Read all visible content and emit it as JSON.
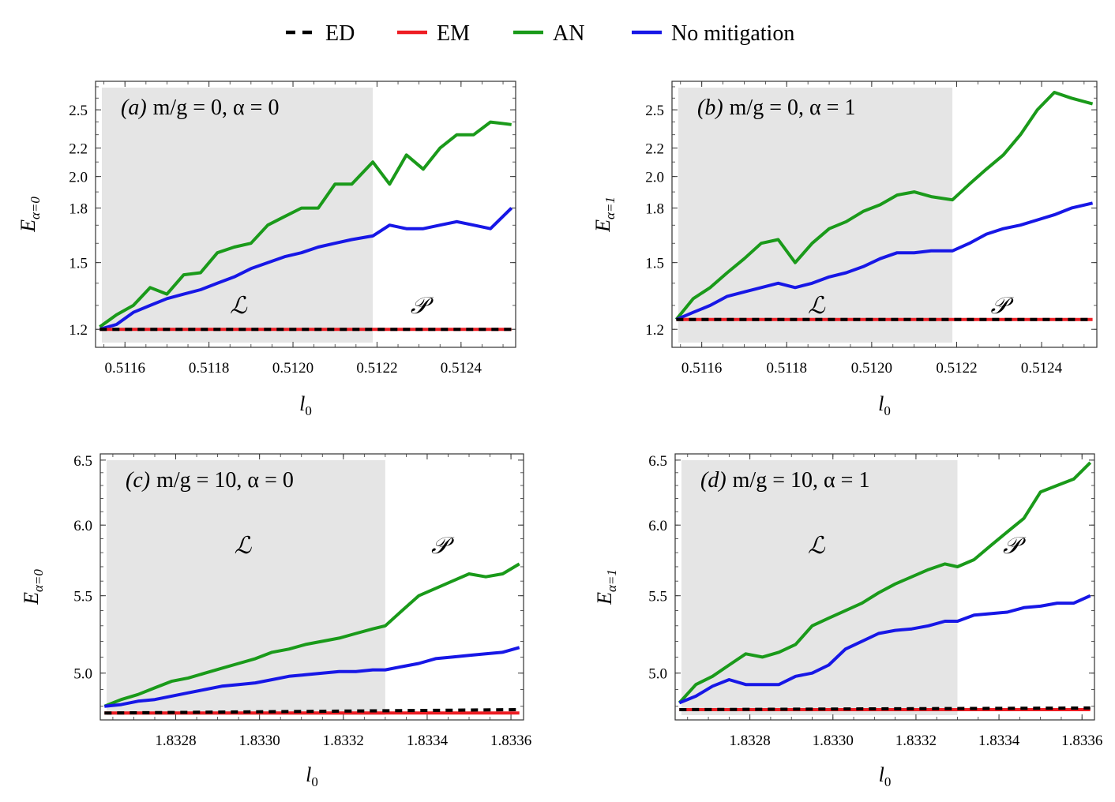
{
  "legend": [
    {
      "name": "ED",
      "color": "#000000",
      "dash": true
    },
    {
      "name": "EM",
      "color": "#ee1d23",
      "dash": false
    },
    {
      "name": "AN",
      "color": "#1a9a1a",
      "dash": false
    },
    {
      "name": "No mitigation",
      "color": "#1717e6",
      "dash": false
    }
  ],
  "chart_data": [
    {
      "type": "line",
      "panel_label": "(a)",
      "title": "m/g = 0,  α = 0",
      "xlabel": "l0",
      "ylabel": "E α=0",
      "ylabel_main": "E",
      "ylabel_sub": "α=0",
      "y_scale": "log",
      "xlim": [
        0.51153,
        0.51253
      ],
      "ylim": [
        1.13,
        2.75
      ],
      "xticks": [
        0.5116,
        0.5118,
        0.512,
        0.5122,
        0.5124
      ],
      "xtick_labels": [
        "0.5116",
        "0.5118",
        "0.5120",
        "0.5122",
        "0.5124"
      ],
      "yticks": [
        1.2,
        1.5,
        1.8,
        2.0,
        2.2,
        2.5
      ],
      "ytick_labels": [
        "1.2",
        "1.5",
        "1.8",
        "2.0",
        "2.2",
        "2.5"
      ],
      "shaded_region": [
        0.51153,
        0.51219
      ],
      "region_labels": [
        {
          "text": "ℒ",
          "x": 0.51187,
          "y": 1.3
        },
        {
          "text": "𝒫",
          "x": 0.5123,
          "y": 1.3
        }
      ],
      "series": [
        {
          "name": "ED",
          "x": [
            0.51154,
            0.51252
          ],
          "y": [
            1.2,
            1.2
          ]
        },
        {
          "name": "EM",
          "x": [
            0.51154,
            0.51252
          ],
          "y": [
            1.2,
            1.2
          ]
        },
        {
          "name": "AN",
          "x": [
            0.51154,
            0.51158,
            0.51162,
            0.51166,
            0.5117,
            0.51174,
            0.51178,
            0.51182,
            0.51186,
            0.5119,
            0.51194,
            0.51198,
            0.51202,
            0.51206,
            0.5121,
            0.51214,
            0.51219,
            0.51223,
            0.51227,
            0.51231,
            0.51235,
            0.51239,
            0.51243,
            0.51247,
            0.51252
          ],
          "y": [
            1.21,
            1.26,
            1.3,
            1.38,
            1.35,
            1.44,
            1.45,
            1.55,
            1.58,
            1.6,
            1.7,
            1.75,
            1.8,
            1.8,
            1.95,
            1.95,
            2.1,
            1.95,
            2.15,
            2.05,
            2.2,
            2.3,
            2.3,
            2.4,
            2.38
          ]
        },
        {
          "name": "No mitigation",
          "x": [
            0.51154,
            0.51158,
            0.51162,
            0.51166,
            0.5117,
            0.51174,
            0.51178,
            0.51182,
            0.51186,
            0.5119,
            0.51194,
            0.51198,
            0.51202,
            0.51206,
            0.5121,
            0.51214,
            0.51219,
            0.51223,
            0.51227,
            0.51231,
            0.51235,
            0.51239,
            0.51243,
            0.51247,
            0.51252
          ],
          "y": [
            1.2,
            1.22,
            1.27,
            1.3,
            1.33,
            1.35,
            1.37,
            1.4,
            1.43,
            1.47,
            1.5,
            1.53,
            1.55,
            1.58,
            1.6,
            1.62,
            1.64,
            1.7,
            1.68,
            1.68,
            1.7,
            1.72,
            1.7,
            1.68,
            1.8
          ]
        }
      ]
    },
    {
      "type": "line",
      "panel_label": "(b)",
      "title": "m/g = 0,  α = 1",
      "xlabel": "l0",
      "ylabel": "E α=1",
      "ylabel_main": "E",
      "ylabel_sub": "α=1",
      "y_scale": "log",
      "xlim": [
        0.51153,
        0.51253
      ],
      "ylim": [
        1.13,
        2.75
      ],
      "xticks": [
        0.5116,
        0.5118,
        0.512,
        0.5122,
        0.5124
      ],
      "xtick_labels": [
        "0.5116",
        "0.5118",
        "0.5120",
        "0.5122",
        "0.5124"
      ],
      "yticks": [
        1.2,
        1.5,
        1.8,
        2.0,
        2.2,
        2.5
      ],
      "ytick_labels": [
        "1.2",
        "1.5",
        "1.8",
        "2.0",
        "2.2",
        "2.5"
      ],
      "shaded_region": [
        0.51153,
        0.51219
      ],
      "region_labels": [
        {
          "text": "ℒ",
          "x": 0.51187,
          "y": 1.3
        },
        {
          "text": "𝒫",
          "x": 0.5123,
          "y": 1.3
        }
      ],
      "series": [
        {
          "name": "ED",
          "x": [
            0.51154,
            0.51252
          ],
          "y": [
            1.24,
            1.24
          ]
        },
        {
          "name": "EM",
          "x": [
            0.51154,
            0.51252
          ],
          "y": [
            1.24,
            1.24
          ]
        },
        {
          "name": "AN",
          "x": [
            0.51154,
            0.51158,
            0.51162,
            0.51166,
            0.5117,
            0.51174,
            0.51178,
            0.51182,
            0.51186,
            0.5119,
            0.51194,
            0.51198,
            0.51202,
            0.51206,
            0.5121,
            0.51214,
            0.51219,
            0.51223,
            0.51227,
            0.51231,
            0.51235,
            0.51239,
            0.51243,
            0.51247,
            0.51252
          ],
          "y": [
            1.24,
            1.33,
            1.38,
            1.45,
            1.52,
            1.6,
            1.62,
            1.5,
            1.6,
            1.68,
            1.72,
            1.78,
            1.82,
            1.88,
            1.9,
            1.87,
            1.85,
            1.95,
            2.05,
            2.15,
            2.3,
            2.5,
            2.65,
            2.6,
            2.55
          ]
        },
        {
          "name": "No mitigation",
          "x": [
            0.51154,
            0.51158,
            0.51162,
            0.51166,
            0.5117,
            0.51174,
            0.51178,
            0.51182,
            0.51186,
            0.5119,
            0.51194,
            0.51198,
            0.51202,
            0.51206,
            0.5121,
            0.51214,
            0.51219,
            0.51223,
            0.51227,
            0.51231,
            0.51235,
            0.51239,
            0.51243,
            0.51247,
            0.51252
          ],
          "y": [
            1.24,
            1.27,
            1.3,
            1.34,
            1.36,
            1.38,
            1.4,
            1.38,
            1.4,
            1.43,
            1.45,
            1.48,
            1.52,
            1.55,
            1.55,
            1.56,
            1.56,
            1.6,
            1.65,
            1.68,
            1.7,
            1.73,
            1.76,
            1.8,
            1.83
          ]
        }
      ]
    },
    {
      "type": "line",
      "panel_label": "(c)",
      "title": "m/g = 10,  α = 0",
      "xlabel": "l0",
      "ylabel": "E α=0",
      "ylabel_main": "E",
      "ylabel_sub": "α=0",
      "y_scale": "log",
      "xlim": [
        1.83262,
        1.83363
      ],
      "ylim": [
        4.72,
        6.55
      ],
      "xticks": [
        1.8328,
        1.833,
        1.8332,
        1.8334,
        1.8336
      ],
      "xtick_labels": [
        "1.8328",
        "1.8330",
        "1.8332",
        "1.8334",
        "1.8336"
      ],
      "yticks": [
        5.0,
        5.5,
        6.0,
        6.5
      ],
      "ytick_labels": [
        "5.0",
        "5.5",
        "6.0",
        "6.5"
      ],
      "shaded_region": [
        1.83262,
        1.8333
      ],
      "region_labels": [
        {
          "text": "ℒ",
          "x": 1.83296,
          "y": 5.85
        },
        {
          "text": "𝒫",
          "x": 1.83343,
          "y": 5.85
        }
      ],
      "series": [
        {
          "name": "ED",
          "x": [
            1.83263,
            1.83362
          ],
          "y": [
            4.76,
            4.78
          ]
        },
        {
          "name": "EM",
          "x": [
            1.83263,
            1.83362
          ],
          "y": [
            4.76,
            4.76
          ]
        },
        {
          "name": "AN",
          "x": [
            1.83263,
            1.83267,
            1.83271,
            1.83275,
            1.83279,
            1.83283,
            1.83287,
            1.83291,
            1.83295,
            1.83299,
            1.83303,
            1.83307,
            1.83311,
            1.83315,
            1.83319,
            1.83323,
            1.83327,
            1.8333,
            1.83334,
            1.83338,
            1.83342,
            1.83346,
            1.8335,
            1.83354,
            1.83358,
            1.83362
          ],
          "y": [
            4.8,
            4.84,
            4.87,
            4.91,
            4.95,
            4.97,
            5.0,
            5.03,
            5.06,
            5.09,
            5.13,
            5.15,
            5.18,
            5.2,
            5.22,
            5.25,
            5.28,
            5.3,
            5.4,
            5.5,
            5.55,
            5.6,
            5.65,
            5.63,
            5.65,
            5.72
          ]
        },
        {
          "name": "No mitigation",
          "x": [
            1.83263,
            1.83267,
            1.83271,
            1.83275,
            1.83279,
            1.83283,
            1.83287,
            1.83291,
            1.83295,
            1.83299,
            1.83303,
            1.83307,
            1.83311,
            1.83315,
            1.83319,
            1.83323,
            1.83327,
            1.8333,
            1.83334,
            1.83338,
            1.83342,
            1.83346,
            1.8335,
            1.83354,
            1.83358,
            1.83362
          ],
          "y": [
            4.8,
            4.81,
            4.83,
            4.84,
            4.86,
            4.88,
            4.9,
            4.92,
            4.93,
            4.94,
            4.96,
            4.98,
            4.99,
            5.0,
            5.01,
            5.01,
            5.02,
            5.02,
            5.04,
            5.06,
            5.09,
            5.1,
            5.11,
            5.12,
            5.13,
            5.16
          ]
        }
      ]
    },
    {
      "type": "line",
      "panel_label": "(d)",
      "title": "m/g = 10,  α = 1",
      "xlabel": "l0",
      "ylabel": "E α=1",
      "ylabel_main": "E",
      "ylabel_sub": "α=1",
      "y_scale": "log",
      "xlim": [
        1.83262,
        1.83363
      ],
      "ylim": [
        4.72,
        6.55
      ],
      "xticks": [
        1.8328,
        1.833,
        1.8332,
        1.8334,
        1.8336
      ],
      "xtick_labels": [
        "1.8328",
        "1.8330",
        "1.8332",
        "1.8334",
        "1.8336"
      ],
      "yticks": [
        5.0,
        5.5,
        6.0,
        6.5
      ],
      "ytick_labels": [
        "5.0",
        "5.5",
        "6.0",
        "6.5"
      ],
      "shaded_region": [
        1.83262,
        1.8333
      ],
      "region_labels": [
        {
          "text": "ℒ",
          "x": 1.83296,
          "y": 5.85
        },
        {
          "text": "𝒫",
          "x": 1.83343,
          "y": 5.85
        }
      ],
      "series": [
        {
          "name": "ED",
          "x": [
            1.83263,
            1.83362
          ],
          "y": [
            4.78,
            4.79
          ]
        },
        {
          "name": "EM",
          "x": [
            1.83263,
            1.83362
          ],
          "y": [
            4.78,
            4.78
          ]
        },
        {
          "name": "AN",
          "x": [
            1.83263,
            1.83267,
            1.83271,
            1.83275,
            1.83279,
            1.83283,
            1.83287,
            1.83291,
            1.83295,
            1.83299,
            1.83303,
            1.83307,
            1.83311,
            1.83315,
            1.83319,
            1.83323,
            1.83327,
            1.8333,
            1.83334,
            1.83338,
            1.83342,
            1.83346,
            1.8335,
            1.83354,
            1.83358,
            1.83362
          ],
          "y": [
            4.82,
            4.93,
            4.98,
            5.05,
            5.12,
            5.1,
            5.13,
            5.18,
            5.3,
            5.35,
            5.4,
            5.45,
            5.52,
            5.58,
            5.63,
            5.68,
            5.72,
            5.7,
            5.75,
            5.85,
            5.95,
            6.05,
            6.25,
            6.3,
            6.35,
            6.48
          ]
        },
        {
          "name": "No mitigation",
          "x": [
            1.83263,
            1.83267,
            1.83271,
            1.83275,
            1.83279,
            1.83283,
            1.83287,
            1.83291,
            1.83295,
            1.83299,
            1.83303,
            1.83307,
            1.83311,
            1.83315,
            1.83319,
            1.83323,
            1.83327,
            1.8333,
            1.83334,
            1.83338,
            1.83342,
            1.83346,
            1.8335,
            1.83354,
            1.83358,
            1.83362
          ],
          "y": [
            4.82,
            4.86,
            4.92,
            4.96,
            4.93,
            4.93,
            4.93,
            4.98,
            5.0,
            5.05,
            5.15,
            5.2,
            5.25,
            5.27,
            5.28,
            5.3,
            5.33,
            5.33,
            5.37,
            5.38,
            5.39,
            5.42,
            5.43,
            5.45,
            5.45,
            5.5
          ]
        }
      ]
    }
  ]
}
